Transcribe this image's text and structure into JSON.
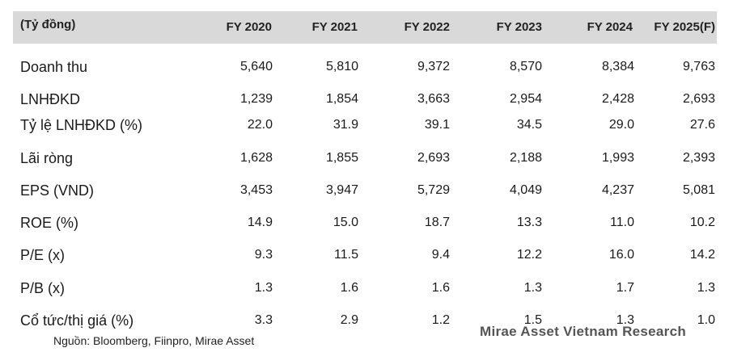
{
  "table": {
    "unit_label": "(Tỷ đồng)",
    "columns": [
      "FY 2020",
      "FY 2021",
      "FY 2022",
      "FY 2023",
      "FY 2024",
      "FY 2025(F)"
    ],
    "rows": [
      {
        "label": "Doanh thu",
        "values": [
          "5,640",
          "5,810",
          "9,372",
          "8,570",
          "8,384",
          "9,763"
        ]
      },
      {
        "label": "LNHĐKD",
        "values": [
          "1,239",
          "1,854",
          "3,663",
          "2,954",
          "2,428",
          "2,693"
        ]
      },
      {
        "label": "Tỷ lệ LNHĐKD (%)",
        "values": [
          "22.0",
          "31.9",
          "39.1",
          "34.5",
          "29.0",
          "27.6"
        ]
      },
      {
        "label": "Lãi ròng",
        "values": [
          "1,628",
          "1,855",
          "2,693",
          "2,188",
          "1,993",
          "2,393"
        ]
      },
      {
        "label": "EPS (VND)",
        "values": [
          "3,453",
          "3,947",
          "5,729",
          "4,049",
          "4,237",
          "5,081"
        ]
      },
      {
        "label": "ROE (%)",
        "values": [
          "14.9",
          "15.0",
          "18.7",
          "13.3",
          "11.0",
          "10.2"
        ]
      },
      {
        "label": "P/E (x)",
        "values": [
          "9.3",
          "11.5",
          "9.4",
          "12.2",
          "16.0",
          "14.2"
        ]
      },
      {
        "label": "P/B (x)",
        "values": [
          "1.3",
          "1.6",
          "1.6",
          "1.3",
          "1.7",
          "1.3"
        ]
      },
      {
        "label": "Cổ tức/thị giá (%)",
        "values": [
          "3.3",
          "2.9",
          "1.2",
          "1.5",
          "1.3",
          "1.0"
        ]
      }
    ]
  },
  "source": "Nguồn: Bloomberg, Fiinpro, Mirae Asset",
  "watermark": "Mirae Asset Vietnam Research"
}
